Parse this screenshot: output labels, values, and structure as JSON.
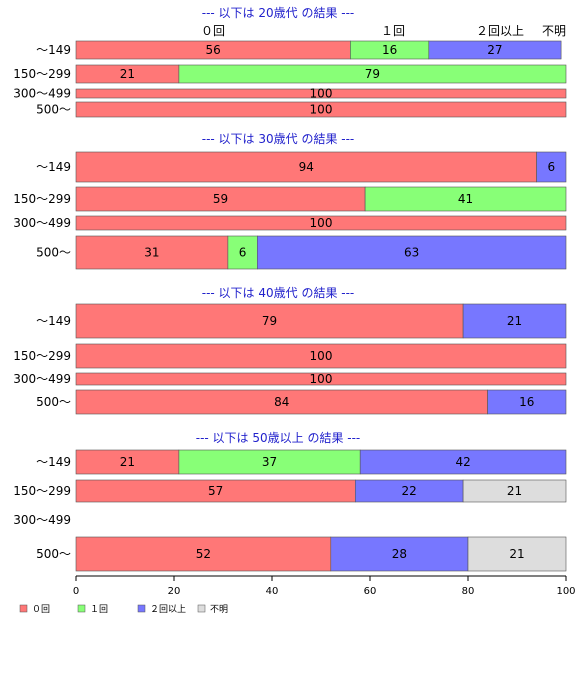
{
  "chart_data": {
    "type": "bar",
    "orientation": "horizontal",
    "stacked": true,
    "xlim": [
      0,
      100
    ],
    "x_ticks": [
      "0",
      "20",
      "40",
      "60",
      "80",
      "100"
    ],
    "column_labels": [
      "０回",
      "１回",
      "２回以上",
      "不明"
    ],
    "legend_placement": "bottom-left",
    "series": [
      {
        "name": "０回",
        "color": "#ff7777"
      },
      {
        "name": "１回",
        "color": "#88ff77"
      },
      {
        "name": "２回以上",
        "color": "#7777ff"
      },
      {
        "name": "不明",
        "color": "#dddddd"
      }
    ],
    "panels": [
      {
        "subtitle": "--- 以下は 20歳代 の結果 ---",
        "rows": [
          {
            "category": "～149",
            "values": [
              56,
              16,
              27,
              0
            ]
          },
          {
            "category": "150～299",
            "values": [
              21,
              79,
              0,
              0
            ]
          },
          {
            "category": "300～499",
            "values": [
              100,
              0,
              0,
              0
            ]
          },
          {
            "category": "500～",
            "values": [
              100,
              0,
              0,
              0
            ]
          }
        ]
      },
      {
        "subtitle": "--- 以下は 30歳代 の結果 ---",
        "rows": [
          {
            "category": "～149",
            "values": [
              94,
              0,
              6,
              0
            ]
          },
          {
            "category": "150～299",
            "values": [
              59,
              41,
              0,
              0
            ]
          },
          {
            "category": "300～499",
            "values": [
              100,
              0,
              0,
              0
            ]
          },
          {
            "category": "500～",
            "values": [
              31,
              6,
              63,
              0
            ]
          }
        ]
      },
      {
        "subtitle": "--- 以下は 40歳代 の結果 ---",
        "rows": [
          {
            "category": "～149",
            "values": [
              79,
              0,
              21,
              0
            ]
          },
          {
            "category": "150～299",
            "values": [
              100,
              0,
              0,
              0
            ]
          },
          {
            "category": "300～499",
            "values": [
              100,
              0,
              0,
              0
            ]
          },
          {
            "category": "500～",
            "values": [
              84,
              0,
              16,
              0
            ]
          }
        ]
      },
      {
        "subtitle": "--- 以下は 50歳以上 の結果 ---",
        "rows": [
          {
            "category": "～149",
            "values": [
              21,
              37,
              42,
              0
            ]
          },
          {
            "category": "150～299",
            "values": [
              57,
              0,
              22,
              21
            ]
          },
          {
            "category": "300～499",
            "values": [
              0,
              0,
              0,
              0
            ]
          },
          {
            "category": "500～",
            "values": [
              52,
              0,
              28,
              21
            ]
          }
        ]
      }
    ]
  }
}
